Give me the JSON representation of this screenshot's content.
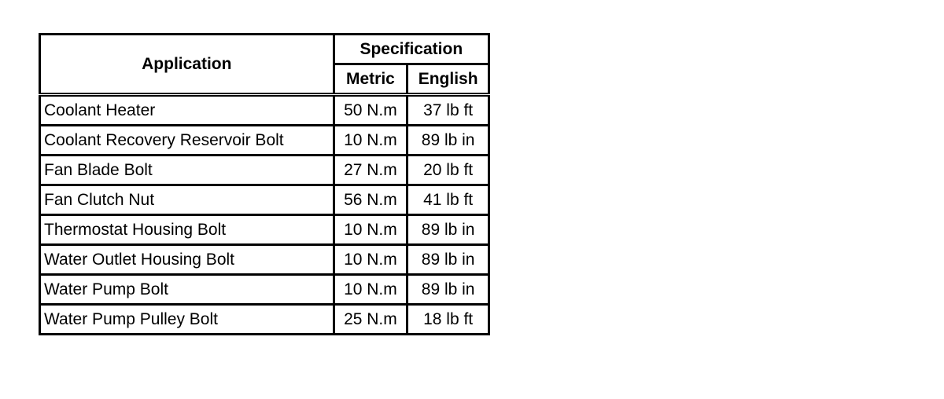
{
  "table": {
    "headers": {
      "application": "Application",
      "specification": "Specification",
      "metric": "Metric",
      "english": "English"
    },
    "rows": [
      {
        "application": "Coolant Heater",
        "metric": "50 N.m",
        "english": "37 lb ft"
      },
      {
        "application": "Coolant Recovery Reservoir Bolt",
        "metric": "10 N.m",
        "english": "89 lb in"
      },
      {
        "application": "Fan Blade Bolt",
        "metric": "27 N.m",
        "english": "20 lb ft"
      },
      {
        "application": "Fan Clutch Nut",
        "metric": "56 N.m",
        "english": "41 lb ft"
      },
      {
        "application": "Thermostat Housing Bolt",
        "metric": "10 N.m",
        "english": "89 lb in"
      },
      {
        "application": "Water Outlet Housing Bolt",
        "metric": "10 N.m",
        "english": "89 lb in"
      },
      {
        "application": "Water Pump Bolt",
        "metric": "10 N.m",
        "english": "89 lb in"
      },
      {
        "application": "Water Pump Pulley Bolt",
        "metric": "25 N.m",
        "english": "18 lb ft"
      }
    ]
  }
}
